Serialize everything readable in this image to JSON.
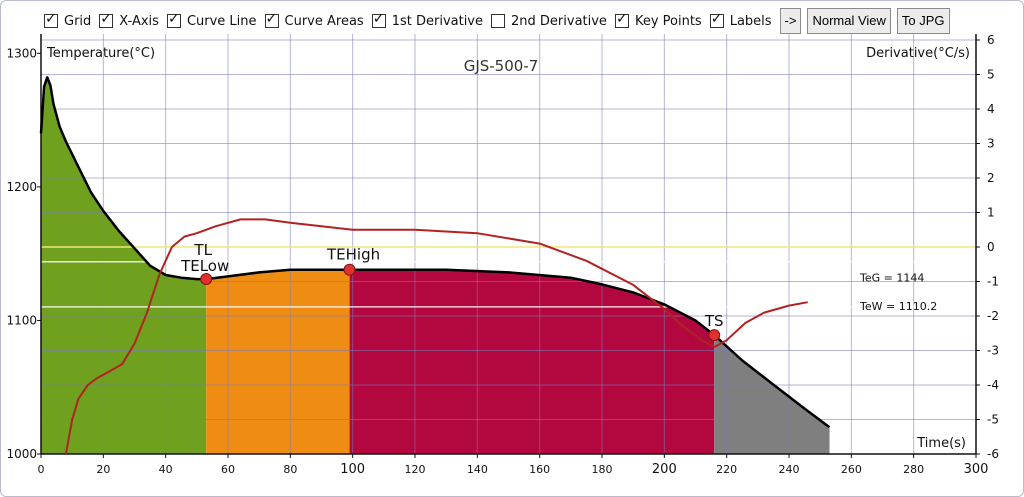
{
  "toolbar": {
    "checkboxes": [
      {
        "label": "Grid",
        "checked": true
      },
      {
        "label": "X-Axis",
        "checked": true
      },
      {
        "label": "Curve Line",
        "checked": true
      },
      {
        "label": "Curve Areas",
        "checked": true
      },
      {
        "label": "1st Derivative",
        "checked": true
      },
      {
        "label": "2nd Derivative",
        "checked": false
      },
      {
        "label": "Key Points",
        "checked": true
      },
      {
        "label": "Labels",
        "checked": true
      }
    ],
    "arrow_label": "->",
    "normal_view_label": "Normal View",
    "to_jpg_label": "To JPG"
  },
  "colors": {
    "green_area": "#6fa11f",
    "orange_area": "#ef8c14",
    "crimson_area": "#b3083f",
    "gray_area": "#7f7f80",
    "cooling_line": "#000000",
    "derivative_line": "#b22222",
    "key_point": "#e03030",
    "zero_line": "#f0e878",
    "grid": "#7a7ab8"
  },
  "chart_data": {
    "type": "line",
    "title": "GJS-500-7",
    "xlabel": "Time(s)",
    "ylabel_left": "Temperature(°C)",
    "ylabel_right": "Derivative(°C/s)",
    "xlim": [
      0,
      300
    ],
    "ylim_left": [
      1000,
      1310
    ],
    "ylim_right": [
      -6,
      6
    ],
    "x_ticks": [
      0,
      20,
      40,
      60,
      80,
      100,
      120,
      140,
      160,
      180,
      200,
      220,
      240,
      260,
      280,
      300
    ],
    "y_ticks_left": [
      1000,
      1100,
      1200,
      1300
    ],
    "y_ticks_right": [
      -6,
      -5,
      -4,
      -3,
      -2,
      -1,
      0,
      1,
      2,
      3,
      4,
      5,
      6
    ],
    "grid": true,
    "series": [
      {
        "name": "cooling curve",
        "axis": "left",
        "x": [
          0,
          1,
          2,
          3,
          4,
          6,
          8,
          12,
          16,
          20,
          25,
          30,
          35,
          40,
          45,
          50,
          53,
          60,
          70,
          80,
          90,
          100,
          110,
          130,
          150,
          170,
          180,
          190,
          200,
          210,
          216,
          225,
          235,
          245,
          253
        ],
        "y": [
          1240,
          1275,
          1282,
          1276,
          1262,
          1245,
          1234,
          1215,
          1196,
          1182,
          1167,
          1154,
          1141,
          1134,
          1132,
          1131,
          1131,
          1133,
          1136,
          1138,
          1138,
          1138,
          1138,
          1138,
          1136,
          1132,
          1127,
          1121,
          1112,
          1100,
          1089,
          1070,
          1052,
          1034,
          1020
        ]
      },
      {
        "name": "1st derivative",
        "axis": "right",
        "x": [
          8,
          10,
          12,
          15,
          18,
          22,
          26,
          30,
          34,
          38,
          42,
          46,
          50,
          56,
          64,
          72,
          80,
          90,
          100,
          110,
          120,
          140,
          160,
          175,
          190,
          200,
          206,
          212,
          216,
          220,
          226,
          232,
          240,
          246
        ],
        "y": [
          -6.0,
          -5.0,
          -4.4,
          -4.0,
          -3.8,
          -3.6,
          -3.4,
          -2.8,
          -1.9,
          -0.8,
          0.0,
          0.3,
          0.4,
          0.6,
          0.8,
          0.8,
          0.7,
          0.6,
          0.5,
          0.5,
          0.5,
          0.4,
          0.1,
          -0.4,
          -1.1,
          -1.8,
          -2.3,
          -2.7,
          -2.9,
          -2.7,
          -2.2,
          -1.9,
          -1.7,
          -1.6
        ]
      }
    ],
    "key_points": [
      {
        "name": "TL",
        "x": 53,
        "y": 1131
      },
      {
        "name": "TELow",
        "x": 53,
        "y": 1131
      },
      {
        "name": "TEHigh",
        "x": 99,
        "y": 1138
      },
      {
        "name": "TS",
        "x": 216,
        "y": 1089
      }
    ],
    "area_boundaries_x": [
      0,
      53,
      99,
      216,
      253
    ],
    "reference_lines": [
      {
        "label": "TeG = 1144",
        "y": 1144
      },
      {
        "label": "TeW = 1110.2",
        "y": 1110.2
      }
    ]
  }
}
